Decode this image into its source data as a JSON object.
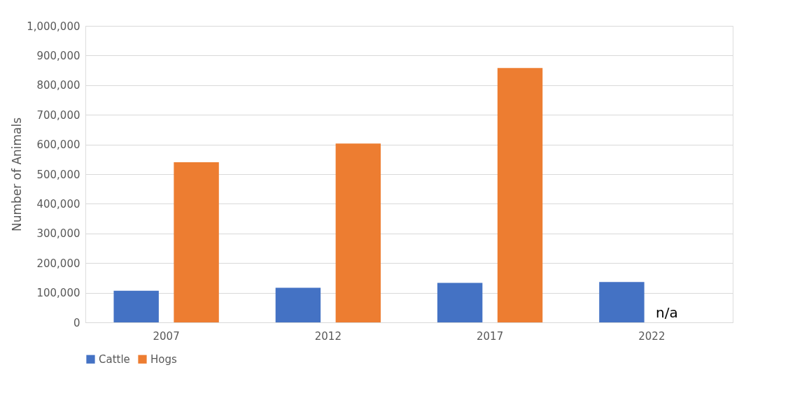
{
  "chart_data": {
    "type": "bar",
    "ylabel": "Number of Animals",
    "categories": [
      "2007",
      "2012",
      "2017",
      "2022"
    ],
    "series": [
      {
        "name": "Cattle",
        "color": "#4472c4",
        "values": [
          107000,
          117000,
          133000,
          136000
        ]
      },
      {
        "name": "Hogs",
        "color": "#ed7d31",
        "values": [
          540000,
          603000,
          858000,
          null
        ]
      }
    ],
    "ylim": [
      0,
      1000000
    ],
    "yticks": [
      0,
      {
        "value": 100000,
        "label": "100,000"
      },
      {
        "value": 200000,
        "label": "200,000"
      },
      {
        "value": 300000,
        "label": "300,000"
      },
      {
        "value": 400000,
        "label": "400,000"
      },
      {
        "value": 500000,
        "label": "500,000"
      },
      {
        "value": 600000,
        "label": "600,000"
      },
      {
        "value": 700000,
        "label": "700,000"
      },
      {
        "value": 800000,
        "label": "800,000"
      },
      {
        "value": 900000,
        "label": "900,000"
      },
      {
        "value": 1000000,
        "label": "1,000,000"
      }
    ],
    "grid": "y",
    "legend": "bottom",
    "annotations": [
      "n/a"
    ]
  }
}
